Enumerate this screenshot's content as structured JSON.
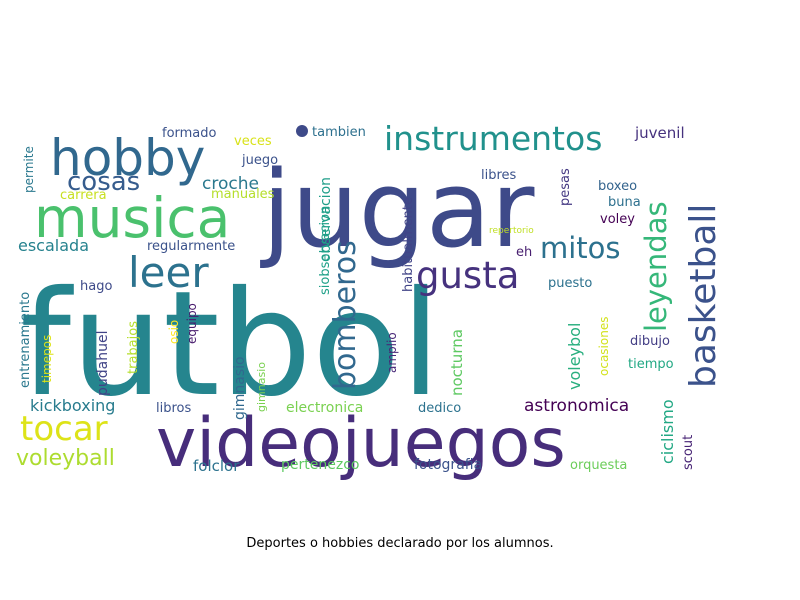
{
  "caption": "Deportes o hobbies declarado por los alumnos.",
  "words": [
    {
      "text": "futbol",
      "color": "#25858e"
    },
    {
      "text": "jugar",
      "color": "#3e4a89"
    },
    {
      "text": "videojuegos",
      "color": "#472d7b"
    },
    {
      "text": "musica",
      "color": "#4ac16d"
    },
    {
      "text": "hobby",
      "color": "#31688e"
    },
    {
      "text": "instrumentos",
      "color": "#21918c"
    },
    {
      "text": "leer",
      "color": "#2c728e"
    },
    {
      "text": "gusta",
      "color": "#46327e"
    },
    {
      "text": "mitos",
      "color": "#2c718e"
    },
    {
      "text": "basketball",
      "color": "#3b528b"
    },
    {
      "text": "leyendas",
      "color": "#35b779"
    },
    {
      "text": "bomberos",
      "color": "#31688e"
    },
    {
      "text": "tocar",
      "color": "#dde318"
    },
    {
      "text": "cosas",
      "color": "#365c8d"
    },
    {
      "text": "voleyball",
      "color": "#addc30"
    },
    {
      "text": "croche",
      "color": "#2a788e"
    },
    {
      "text": "escalada",
      "color": "#26828e"
    },
    {
      "text": "kickboxing",
      "color": "#287c8e"
    },
    {
      "text": "astronomica",
      "color": "#440154"
    },
    {
      "text": "folclor",
      "color": "#2c728e"
    },
    {
      "text": "fotografia",
      "color": "#3b528b"
    },
    {
      "text": "pertenezco",
      "color": "#5ec962"
    },
    {
      "text": "electronica",
      "color": "#7ad151"
    },
    {
      "text": "orquesta",
      "color": "#6ccd5a"
    },
    {
      "text": "ciclismo",
      "color": "#22a884"
    },
    {
      "text": "scout",
      "color": "#482475"
    },
    {
      "text": "voleybol",
      "color": "#29af7f"
    },
    {
      "text": "nocturna",
      "color": "#5ec962"
    },
    {
      "text": "gimnasio",
      "color": "#31688e"
    },
    {
      "text": "gimnasio",
      "color": "#7ad151"
    },
    {
      "text": "regularmente",
      "color": "#3b528b"
    },
    {
      "text": "observacion",
      "color": "#1f9e89"
    },
    {
      "text": "habitualmente",
      "color": "#414487"
    },
    {
      "text": "pudahuel",
      "color": "#414487"
    },
    {
      "text": "entrenamiento",
      "color": "#2a788e"
    },
    {
      "text": "timepos",
      "color": "#dde318"
    },
    {
      "text": "trabajos",
      "color": "#b5de2b"
    },
    {
      "text": "osio",
      "color": "#fde725"
    },
    {
      "text": "equipo",
      "color": "#481b6d"
    },
    {
      "text": "hago",
      "color": "#3e4a89"
    },
    {
      "text": "libros",
      "color": "#3b528b"
    },
    {
      "text": "dedico",
      "color": "#2c728e"
    },
    {
      "text": "amplio",
      "color": "#482878"
    },
    {
      "text": "tiempo",
      "color": "#22a884"
    },
    {
      "text": "dibujo",
      "color": "#433e85"
    },
    {
      "text": "ocasiones",
      "color": "#d2e21b"
    },
    {
      "text": "puesto",
      "color": "#2c718e"
    },
    {
      "text": "eh",
      "color": "#481f70"
    },
    {
      "text": "pesas",
      "color": "#443983"
    },
    {
      "text": "libres",
      "color": "#3b528b"
    },
    {
      "text": "boxeo",
      "color": "#33638d"
    },
    {
      "text": "buna",
      "color": "#2d708e"
    },
    {
      "text": "voley",
      "color": "#440154"
    },
    {
      "text": "juvenil",
      "color": "#46327e"
    },
    {
      "text": "repertorio",
      "color": "#c0df25"
    },
    {
      "text": "tambien",
      "color": "#2d708e"
    },
    {
      "text": "formado",
      "color": "#3b528b"
    },
    {
      "text": "veces",
      "color": "#d8e219"
    },
    {
      "text": "juego",
      "color": "#3b528b"
    },
    {
      "text": "manuales",
      "color": "#b5de2b"
    },
    {
      "text": "carrera",
      "color": "#c8e020"
    },
    {
      "text": "permite",
      "color": "#2a788e"
    },
    {
      "text": "siobservacion",
      "color": "#1fa088"
    }
  ]
}
